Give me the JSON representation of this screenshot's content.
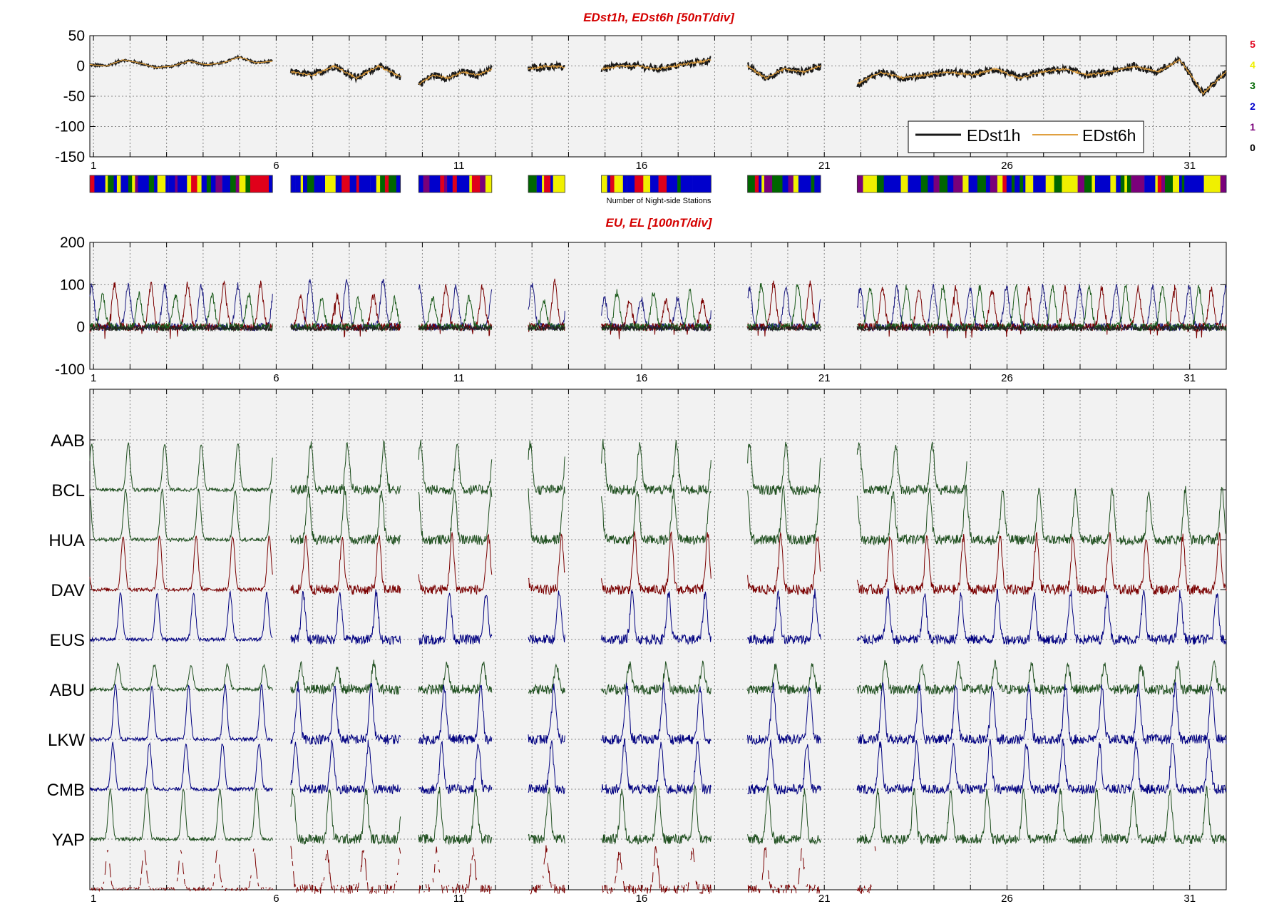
{
  "chart_data": [
    {
      "type": "line",
      "title": "EDst1h, EDst6h [50nT/div]",
      "ylim": [
        -150,
        50
      ],
      "y_ticks": [
        "50",
        "0",
        "-50",
        "-100",
        "-150"
      ],
      "x_range_days": [
        0.9,
        32.0
      ],
      "x_ticks": [
        "1",
        "6",
        "11",
        "16",
        "21",
        "26",
        "31"
      ],
      "grid": true,
      "legend": "bottom-right",
      "series": [
        {
          "name": "EDst1h",
          "color": "#1a1a1a"
        },
        {
          "name": "EDst6h",
          "color": "#e0a040"
        }
      ],
      "data_segments_days": [
        [
          0.9,
          5.9
        ],
        [
          6.4,
          9.4
        ],
        [
          9.9,
          11.9
        ],
        [
          12.9,
          13.9
        ],
        [
          14.9,
          17.9
        ],
        [
          18.9,
          20.9
        ],
        [
          21.9,
          32.0
        ]
      ],
      "approx_values": {
        "segment_1": [
          2,
          0,
          10,
          5,
          -3,
          0,
          8,
          2,
          5,
          15,
          5,
          8
        ],
        "segment_2": [
          -10,
          -15,
          0,
          -20,
          0,
          -18
        ],
        "segment_3": [
          -30,
          -15,
          -20,
          -10,
          -15,
          -5
        ],
        "segment_4": [
          -5,
          0,
          -2
        ],
        "segment_5": [
          -5,
          0,
          0,
          -5,
          0,
          5,
          10
        ],
        "segment_6": [
          0,
          -20,
          -5,
          -10,
          0
        ],
        "segment_7": [
          -30,
          -10,
          -20,
          -15,
          -10,
          -15,
          -5,
          -20,
          -10,
          -5,
          -15,
          -10,
          0,
          -10,
          10,
          -45,
          -10
        ]
      }
    },
    {
      "type": "heatmap",
      "title": "Number of Night-side Stations",
      "scale_labels": [
        "5",
        "4",
        "3",
        "2",
        "1",
        "0"
      ],
      "scale_colors": [
        "#e0001a",
        "#f0f000",
        "#006600",
        "#0000cc",
        "#7a007a",
        "#000000"
      ]
    },
    {
      "type": "line",
      "title": "EU, EL   [100nT/div]",
      "ylim": [
        -100,
        200
      ],
      "y_ticks": [
        "200",
        "100",
        "0",
        "-100"
      ],
      "x_ticks": [
        "1",
        "6",
        "11",
        "16",
        "21",
        "26",
        "31"
      ],
      "grid": true,
      "series_colors": [
        "#1a1a80",
        "#7a0000",
        "#1a5a1a",
        "#222222"
      ]
    },
    {
      "type": "line",
      "title": "",
      "stations": [
        "AAB",
        "BCL",
        "HUA",
        "DAV",
        "EUS",
        "ABU",
        "LKW",
        "CMB",
        "YAP"
      ],
      "station_colors": [
        "#1f4f1f",
        "#1f4f1f",
        "#7a0000",
        "#000080",
        "#1f4f1f",
        "#000080",
        "#000080",
        "#1f4f1f",
        "#7a0000"
      ],
      "x_ticks": [
        "1",
        "6",
        "11",
        "16",
        "21",
        "26",
        "31"
      ],
      "grid": true
    }
  ]
}
